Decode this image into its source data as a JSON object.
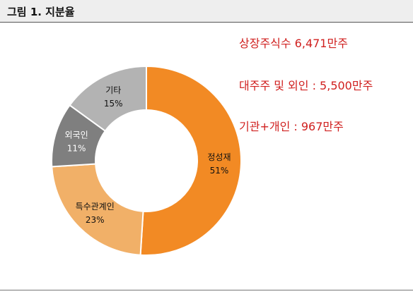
{
  "figure": {
    "title": "그림 1. 지분율"
  },
  "chart_data": {
    "type": "pie",
    "donut": true,
    "title": "",
    "slices": [
      {
        "label": "정성재",
        "pct_label": "51%",
        "value": 51,
        "color": "#f28a24",
        "text_color": "#111111"
      },
      {
        "label": "특수관계인",
        "pct_label": "23%",
        "value": 23,
        "color": "#f1b068",
        "text_color": "#111111"
      },
      {
        "label": "외국인",
        "pct_label": "11%",
        "value": 11,
        "color": "#7f7f7f",
        "text_color": "#ffffff"
      },
      {
        "label": "기타",
        "pct_label": "15%",
        "value": 15,
        "color": "#b3b3b3",
        "text_color": "#111111"
      }
    ]
  },
  "annotations": [
    "상장주식수 6,471만주",
    "대주주 및 외인 : 5,500만주",
    "기관+개인 : 967만주"
  ]
}
